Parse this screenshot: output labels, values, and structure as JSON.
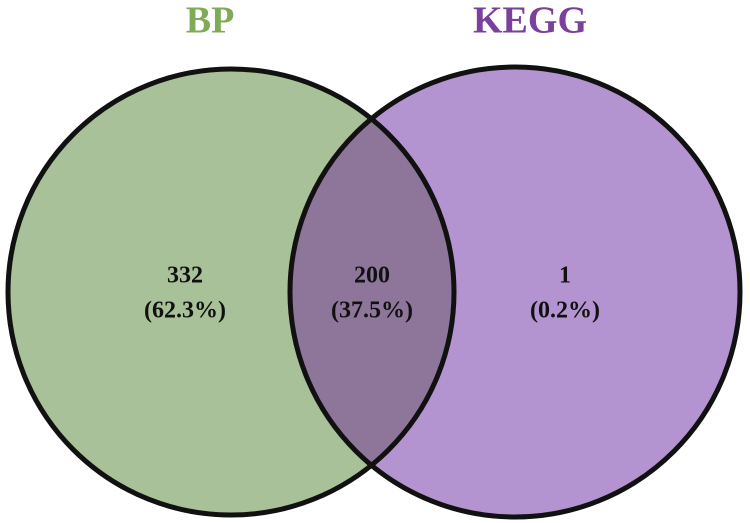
{
  "chart_data": {
    "type": "venn",
    "sets": [
      {
        "name": "BP",
        "color": "#a9c198",
        "title_color": "#7fab57"
      },
      {
        "name": "KEGG",
        "color": "#b494d0",
        "title_color": "#7b3f9c"
      }
    ],
    "overlap_color": "#8e769b",
    "regions": [
      "BP",
      "BP KEGG",
      "KEGG"
    ],
    "values": [
      332,
      200,
      1
    ],
    "percent_labels": [
      "(62.3%)",
      "(37.5%)",
      "(0.2%)"
    ]
  }
}
